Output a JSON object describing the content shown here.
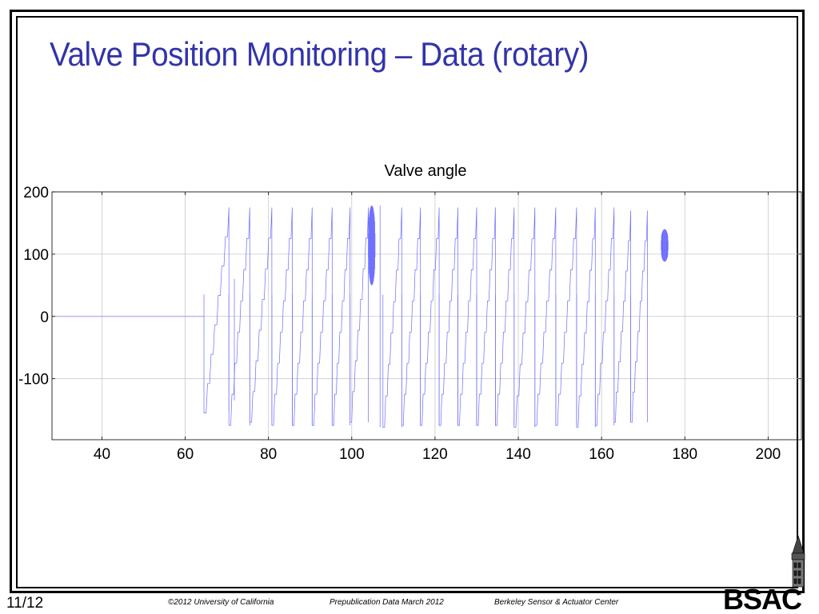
{
  "slide": {
    "title": "Valve Position Monitoring – Data (rotary)",
    "page_number": "11/12",
    "footer_copyright": "©2012 University of California",
    "footer_prepub": "Prepublication Data March 2012",
    "footer_center": "Berkeley Sensor & Actuator Center",
    "logo_text": "BSAC"
  },
  "colors": {
    "title": "#3333aa",
    "series": "#6b6bff",
    "grid": "#c8c8c8"
  },
  "chart_data": {
    "type": "line",
    "title": "Valve angle",
    "xlabel": "",
    "ylabel": "",
    "xlim": [
      28,
      208
    ],
    "ylim": [
      -198,
      200
    ],
    "x_ticks": [
      40,
      60,
      80,
      100,
      120,
      140,
      160,
      180,
      200
    ],
    "y_ticks": [
      200,
      100,
      0,
      -100
    ],
    "y_tick_labels": [
      "200",
      "100",
      "0",
      "-100"
    ],
    "grid": true,
    "legend": "none",
    "series": [
      {
        "baseline": {
          "x": [
            28,
            64.5
          ],
          "y": [
            0,
            0
          ]
        },
        "sawtooth_segments": [
          {
            "x0": 64.5,
            "x1": 70.5,
            "ymin": -155,
            "ymax": 175
          },
          {
            "x0": 70.5,
            "x1": 75.5,
            "ymin": -175,
            "ymax": 175
          },
          {
            "x0": 75.5,
            "x1": 80.8,
            "ymin": -170,
            "ymax": 175
          },
          {
            "x0": 80.8,
            "x1": 85.7,
            "ymin": -175,
            "ymax": 175
          },
          {
            "x0": 85.7,
            "x1": 90.5,
            "ymin": -175,
            "ymax": 175
          },
          {
            "x0": 90.5,
            "x1": 95.3,
            "ymin": -175,
            "ymax": 175
          },
          {
            "x0": 95.3,
            "x1": 99.6,
            "ymin": -175,
            "ymax": 175
          },
          {
            "x0": 99.6,
            "x1": 104.0,
            "ymin": -170,
            "ymax": 175
          },
          {
            "x0": 107.5,
            "x1": 112.0,
            "ymin": -178,
            "ymax": 175
          },
          {
            "x0": 112.0,
            "x1": 116.5,
            "ymin": -175,
            "ymax": 175
          },
          {
            "x0": 116.5,
            "x1": 121.0,
            "ymin": -175,
            "ymax": 175
          },
          {
            "x0": 121.0,
            "x1": 125.5,
            "ymin": -175,
            "ymax": 175
          },
          {
            "x0": 125.5,
            "x1": 130.0,
            "ymin": -175,
            "ymax": 175
          },
          {
            "x0": 130.0,
            "x1": 134.5,
            "ymin": -175,
            "ymax": 175
          },
          {
            "x0": 134.5,
            "x1": 139.0,
            "ymin": -175,
            "ymax": 175
          },
          {
            "x0": 139.0,
            "x1": 144.0,
            "ymin": -178,
            "ymax": 175
          },
          {
            "x0": 144.0,
            "x1": 149.0,
            "ymin": -175,
            "ymax": 175
          },
          {
            "x0": 149.0,
            "x1": 154.0,
            "ymin": -175,
            "ymax": 175
          },
          {
            "x0": 154.0,
            "x1": 158.5,
            "ymin": -178,
            "ymax": 175
          },
          {
            "x0": 158.5,
            "x1": 163.0,
            "ymin": -175,
            "ymax": 175
          },
          {
            "x0": 163.0,
            "x1": 167.0,
            "ymin": -170,
            "ymax": 170
          },
          {
            "x0": 167.0,
            "x1": 171.0,
            "ymin": -170,
            "ymax": 170
          }
        ],
        "oscillation_bursts": [
          {
            "x0": 104.0,
            "x1": 105.6,
            "ymin": 50,
            "ymax": 178
          },
          {
            "x0": 174.3,
            "x1": 176.0,
            "ymin": 88,
            "ymax": 140
          }
        ],
        "spikes": [
          {
            "x": 106.8,
            "ymin": -178,
            "ymax": 178
          },
          {
            "x": 71.8,
            "ymin": -135,
            "ymax": 60
          }
        ]
      }
    ]
  }
}
